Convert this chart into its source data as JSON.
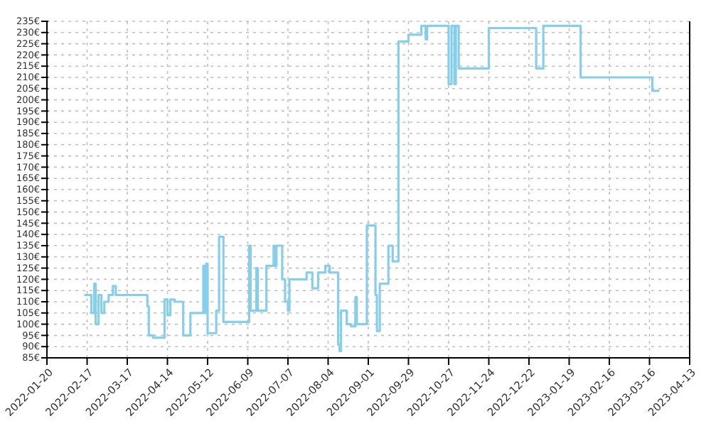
{
  "chart_data": {
    "type": "step",
    "x": [
      "2022-02-15",
      "2022-02-20",
      "2022-02-22",
      "2022-02-23",
      "2022-02-25",
      "2022-02-27",
      "2022-03-01",
      "2022-03-04",
      "2022-03-07",
      "2022-03-09",
      "2022-03-31",
      "2022-04-01",
      "2022-04-04",
      "2022-04-12",
      "2022-04-14",
      "2022-04-16",
      "2022-04-19",
      "2022-04-25",
      "2022-04-30",
      "2022-05-09",
      "2022-05-10",
      "2022-05-11",
      "2022-05-12",
      "2022-05-18",
      "2022-05-20",
      "2022-05-23",
      "2022-06-10",
      "2022-06-11",
      "2022-06-15",
      "2022-06-16",
      "2022-06-22",
      "2022-06-27",
      "2022-06-28",
      "2022-06-29",
      "2022-07-03",
      "2022-07-05",
      "2022-07-07",
      "2022-07-08",
      "2022-07-20",
      "2022-07-24",
      "2022-07-28",
      "2022-08-02",
      "2022-08-05",
      "2022-08-11",
      "2022-08-12",
      "2022-08-13",
      "2022-08-17",
      "2022-08-20",
      "2022-08-23",
      "2022-08-24",
      "2022-08-31",
      "2022-09-06",
      "2022-09-07",
      "2022-09-09",
      "2022-09-15",
      "2022-09-18",
      "2022-09-22",
      "2022-09-29",
      "2022-10-08",
      "2022-10-11",
      "2022-10-12",
      "2022-10-27",
      "2022-10-29",
      "2022-10-31",
      "2022-11-01",
      "2022-11-03",
      "2022-11-24",
      "2022-12-27",
      "2023-01-01",
      "2023-01-27",
      "2023-03-18",
      "2023-03-23"
    ],
    "series": [
      {
        "color": "#87ceeb",
        "values": [
          113,
          105,
          118,
          100,
          113,
          105,
          110,
          113,
          117,
          113,
          108,
          95,
          94,
          111,
          104,
          111,
          110,
          95,
          105,
          126,
          105,
          127,
          96,
          106,
          139,
          101,
          135,
          106,
          125,
          106,
          126,
          135,
          126,
          135,
          120,
          110,
          106,
          120,
          123,
          116,
          123,
          126,
          123,
          91,
          88,
          106,
          100,
          99,
          112,
          100,
          144,
          113,
          97,
          118,
          135,
          128,
          226,
          229,
          233,
          227,
          233,
          207,
          233,
          207,
          233,
          214,
          232,
          214,
          233,
          210,
          204,
          204
        ]
      }
    ],
    "xlim": [
      "2022-01-20",
      "2023-04-13"
    ],
    "xticks": [
      "2022-01-20",
      "2022-02-17",
      "2022-03-17",
      "2022-04-14",
      "2022-05-12",
      "2022-06-09",
      "2022-07-07",
      "2022-08-04",
      "2022-09-01",
      "2022-09-29",
      "2022-10-27",
      "2022-11-24",
      "2022-12-22",
      "2023-01-19",
      "2023-02-16",
      "2023-03-16",
      "2023-04-13"
    ],
    "ylim": [
      85,
      235
    ],
    "yticks": [
      {
        "value": 85,
        "label": "85€"
      },
      {
        "value": 90,
        "label": "90€"
      },
      {
        "value": 95,
        "label": "95€"
      },
      {
        "value": 100,
        "label": "100€"
      },
      {
        "value": 105,
        "label": "105€"
      },
      {
        "value": 110,
        "label": "110€"
      },
      {
        "value": 115,
        "label": "115€"
      },
      {
        "value": 120,
        "label": "120€"
      },
      {
        "value": 125,
        "label": "125€"
      },
      {
        "value": 130,
        "label": "130€"
      },
      {
        "value": 135,
        "label": "135€"
      },
      {
        "value": 140,
        "label": "140€"
      },
      {
        "value": 145,
        "label": "145€"
      },
      {
        "value": 150,
        "label": "150€"
      },
      {
        "value": 155,
        "label": "155€"
      },
      {
        "value": 160,
        "label": "160€"
      },
      {
        "value": 165,
        "label": "165€"
      },
      {
        "value": 170,
        "label": "170€"
      },
      {
        "value": 175,
        "label": "175€"
      },
      {
        "value": 180,
        "label": "180€"
      },
      {
        "value": 185,
        "label": "185€"
      },
      {
        "value": 190,
        "label": "190€"
      },
      {
        "value": 195,
        "label": "195€"
      },
      {
        "value": 200,
        "label": "200€"
      },
      {
        "value": 205,
        "label": "205€"
      },
      {
        "value": 210,
        "label": "210€"
      },
      {
        "value": 215,
        "label": "215€"
      },
      {
        "value": 220,
        "label": "220€"
      },
      {
        "value": 225,
        "label": "225€"
      },
      {
        "value": 230,
        "label": "230€"
      },
      {
        "value": 235,
        "label": "235€"
      }
    ],
    "grid": true
  }
}
